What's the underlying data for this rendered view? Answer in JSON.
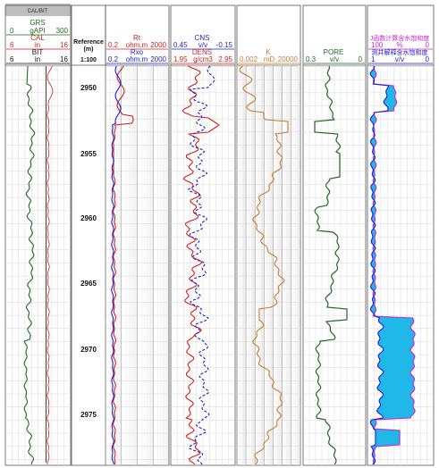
{
  "tab": {
    "label": "CAL/BIT"
  },
  "depth": {
    "title_line1": "Reference",
    "title_line2": "(m)",
    "scale": "1:100",
    "labels": [
      "2950",
      "2955",
      "2960",
      "2965",
      "2970",
      "2975"
    ]
  },
  "tracks": {
    "t1": {
      "grs": {
        "name": "GRS",
        "min": "0",
        "unit": "gAPI",
        "max": "300",
        "color": "#1f6b1f"
      },
      "cal": {
        "name": "CAL",
        "min": "6",
        "unit": "in",
        "max": "16",
        "color": "#d42020"
      },
      "bit": {
        "name": "BIT",
        "min": "6",
        "unit": "in",
        "max": "16",
        "color": "#111111"
      }
    },
    "t3": {
      "rt": {
        "name": "Rt",
        "min": "0.2",
        "unit": "ohm.m",
        "max": "2000",
        "color": "#d42020"
      },
      "rxo": {
        "name": "Rxo",
        "min": "0.2",
        "unit": "ohm.m",
        "max": "2000",
        "color": "#1f1fcc"
      }
    },
    "t4": {
      "cns": {
        "name": "CNS",
        "min": "0.45",
        "unit": "v/v",
        "max": "-0.15",
        "color": "#1f1fcc"
      },
      "dens": {
        "name": "DENS",
        "min": "1.95",
        "unit": "g/cm3",
        "max": "2.95",
        "color": "#d42020"
      }
    },
    "t5": {
      "k": {
        "name": "K",
        "min": "0.002",
        "unit": "mD",
        "max": "20000",
        "color": "#c87d2e"
      }
    },
    "t6": {
      "pore": {
        "name": "PORE",
        "min": "0.3",
        "unit": "v/v",
        "max": "0",
        "color": "#1f6b1f"
      }
    },
    "t7": {
      "sw_fn": {
        "name": "J函数计算含水饱和度",
        "min": "100",
        "unit": "%",
        "max": "0",
        "color": "#cc22cc"
      },
      "sw_int": {
        "name": "测井解释含水饱和度",
        "min": "1",
        "unit": "v/v",
        "max": "0",
        "color": "#1f1fcc"
      },
      "fill_color": "#1fb8e8"
    }
  }
}
